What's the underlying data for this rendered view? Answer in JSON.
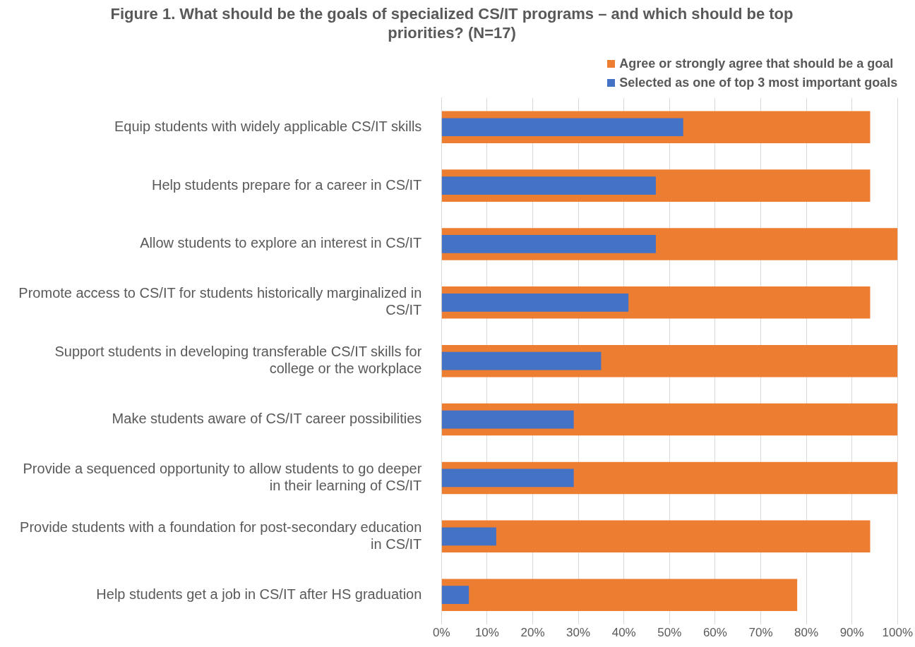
{
  "chart_data": {
    "type": "bar",
    "orientation": "horizontal",
    "title": "Figure 1. What should be the goals of specialized CS/IT programs – and which should be top priorities? (N=17)",
    "categories": [
      "Equip students with widely applicable CS/IT skills",
      "Help students prepare for a career in CS/IT",
      "Allow students to explore an interest in CS/IT",
      "Promote access to CS/IT for students historically marginalized in CS/IT",
      "Support students in developing transferable CS/IT skills for college or the workplace",
      "Make students aware of CS/IT career possibilities",
      "Provide a sequenced opportunity to allow students to go deeper in their learning of CS/IT",
      "Provide students with a foundation for post-secondary education in CS/IT",
      "Help students get a job in CS/IT after HS graduation"
    ],
    "series": [
      {
        "name": "Agree or strongly agree that should be a goal",
        "color": "#ed7d31",
        "values": [
          94,
          94,
          100,
          94,
          100,
          100,
          100,
          94,
          78
        ]
      },
      {
        "name": "Selected as one of top 3 most important goals",
        "color": "#4472c4",
        "values": [
          53,
          47,
          47,
          41,
          35,
          29,
          29,
          12,
          6
        ]
      }
    ],
    "xlim": [
      0,
      100
    ],
    "xticks": [
      {
        "value": 0,
        "label": "0%"
      },
      {
        "value": 10,
        "label": "10%"
      },
      {
        "value": 20,
        "label": "20%"
      },
      {
        "value": 30,
        "label": "30%"
      },
      {
        "value": 40,
        "label": "40%"
      },
      {
        "value": 50,
        "label": "50%"
      },
      {
        "value": 60,
        "label": "60%"
      },
      {
        "value": 70,
        "label": "70%"
      },
      {
        "value": 80,
        "label": "80%"
      },
      {
        "value": 90,
        "label": "90%"
      },
      {
        "value": 100,
        "label": "100%"
      }
    ],
    "grid": "x",
    "legend": "top right"
  }
}
